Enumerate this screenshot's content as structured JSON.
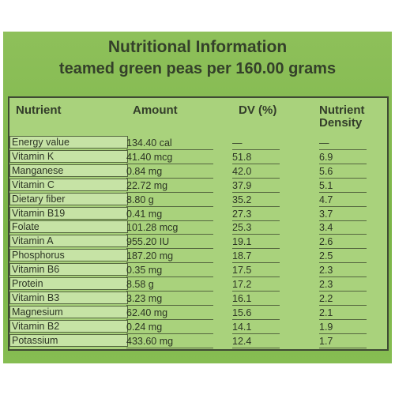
{
  "header": {
    "title": "Nutritional Information",
    "subtitle": "teamed green peas per 160.00 grams"
  },
  "table": {
    "columns": [
      "Nutrient",
      "Amount",
      "DV (%)",
      "Nutrient Density"
    ],
    "rows": [
      [
        "Energy value",
        "134.40 cal",
        "—",
        "—"
      ],
      [
        "Vitamin K",
        "41.40 mcg",
        "51.8",
        "6.9"
      ],
      [
        "Manganese",
        "0.84 mg",
        "42.0",
        "5.6"
      ],
      [
        "Vitamin C",
        "22.72 mg",
        "37.9",
        "5.1"
      ],
      [
        "Dietary fiber",
        "8.80 g",
        "35.2",
        "4.7"
      ],
      [
        "Vitamin B19",
        "0.41 mg",
        "27.3",
        "3.7"
      ],
      [
        "Folate",
        "101.28 mcg",
        "25.3",
        "3.4"
      ],
      [
        "Vitamin A",
        "955.20 IU",
        "19.1",
        "2.6"
      ],
      [
        "Phosphorus",
        "187.20 mg",
        "18.7",
        "2.5"
      ],
      [
        "Vitamin B6",
        "0.35 mg",
        "17.5",
        "2.3"
      ],
      [
        "Protein",
        "8.58 g",
        "17.2",
        "2.3"
      ],
      [
        "Vitamin B3",
        "3.23 mg",
        "16.1",
        "2.2"
      ],
      [
        "Magnesium",
        "62.40 mg",
        "15.6",
        "2.1"
      ],
      [
        "Vitamin B2",
        "0.24 mg",
        "14.1",
        "1.9"
      ],
      [
        "Potassium",
        "433.60 mg",
        "12.4",
        "1.7"
      ]
    ]
  }
}
